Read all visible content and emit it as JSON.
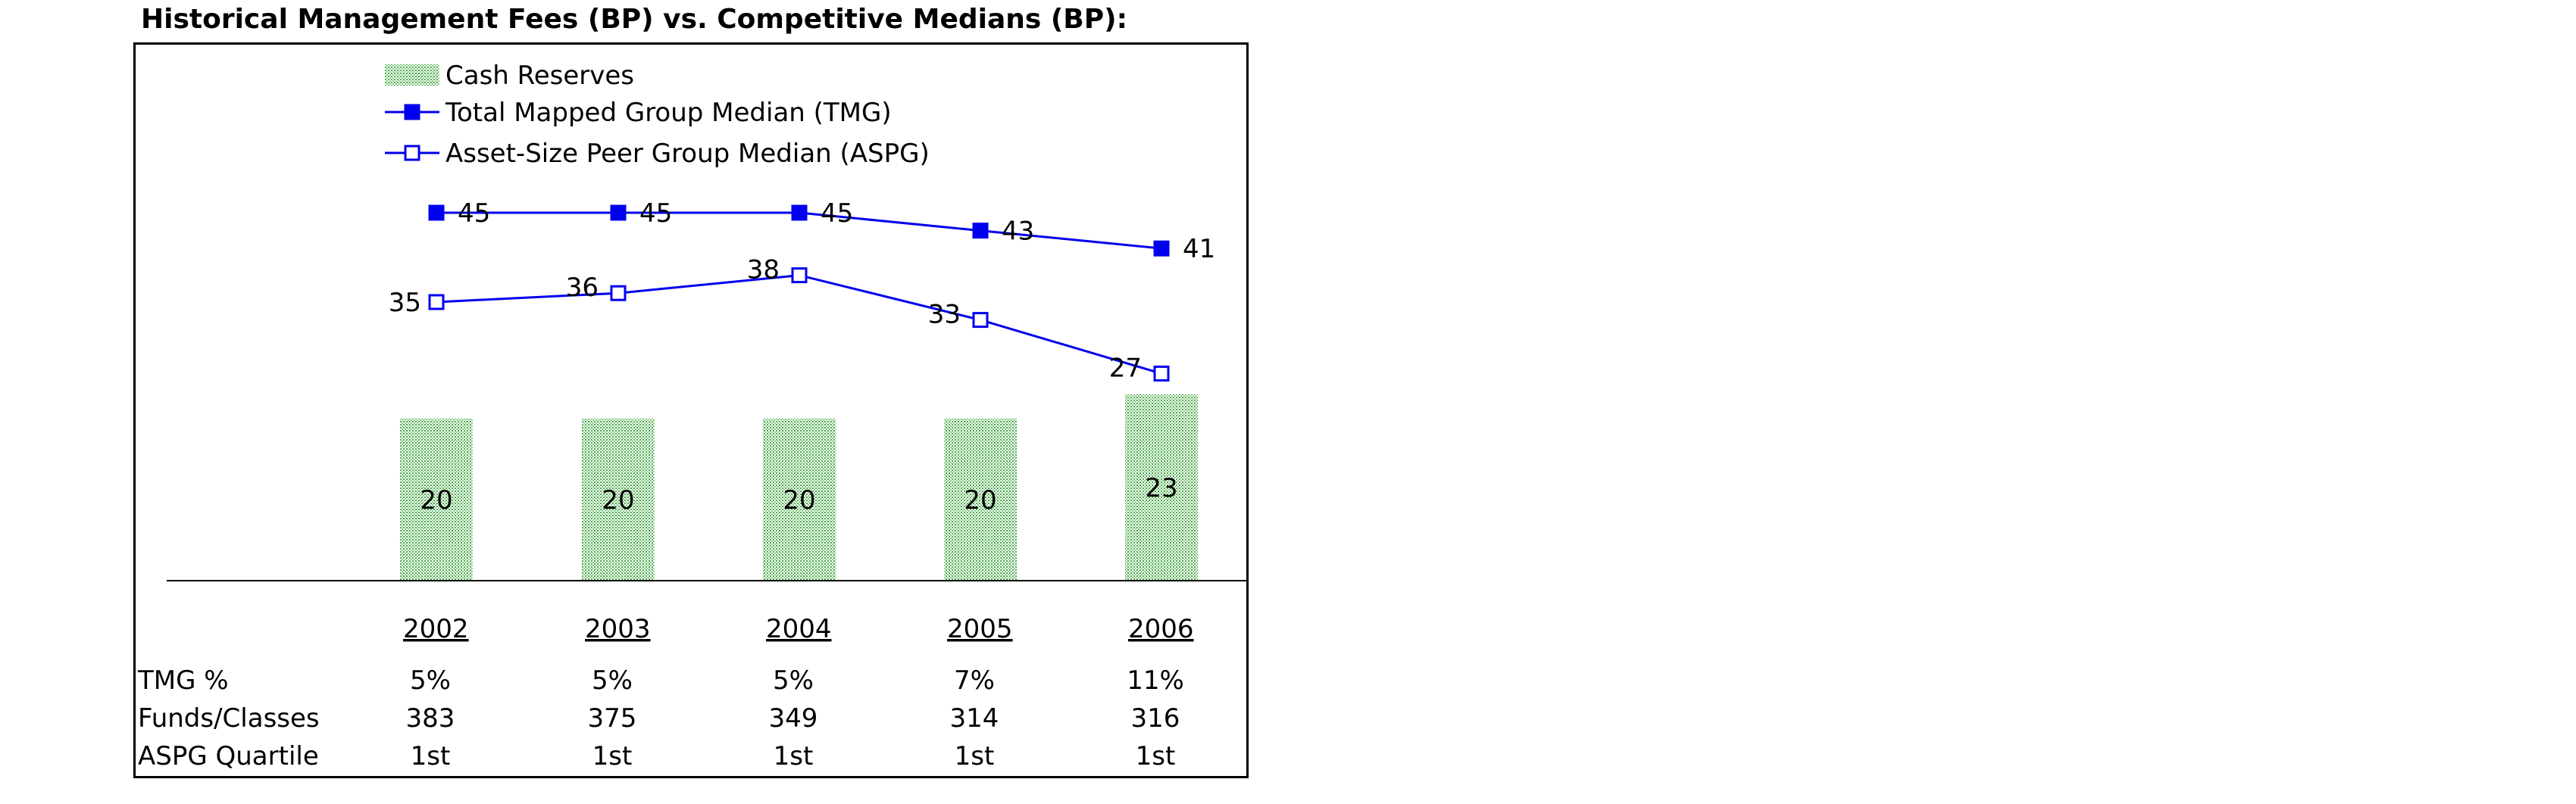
{
  "title": "Historical Management Fees (BP) vs. Competitive Medians (BP):",
  "chart_data": {
    "type": "bar",
    "categories": [
      "2002",
      "2003",
      "2004",
      "2005",
      "2006"
    ],
    "series": [
      {
        "name": "Cash Reserves",
        "kind": "bar",
        "values": [
          20,
          20,
          20,
          20,
          23
        ],
        "color": "#6fb86f"
      },
      {
        "name": "Total Mapped Group Median (TMG)",
        "kind": "line",
        "marker": "filled-square",
        "values": [
          45,
          45,
          45,
          43,
          41
        ],
        "color": "#0000ee"
      },
      {
        "name": "Asset-Size Peer Group Median (ASPG)",
        "kind": "line",
        "marker": "open-square",
        "values": [
          35,
          36,
          38,
          33,
          27
        ],
        "color": "#0000ee"
      }
    ],
    "legend_position": "top-left",
    "grid": false
  },
  "table": {
    "rows": [
      {
        "label": "TMG %",
        "values": [
          "5%",
          "5%",
          "5%",
          "7%",
          "11%"
        ]
      },
      {
        "label": "Funds/Classes",
        "values": [
          "383",
          "375",
          "349",
          "314",
          "316"
        ]
      },
      {
        "label": "ASPG Quartile",
        "values": [
          "1st",
          "1st",
          "1st",
          "1st",
          "1st"
        ]
      }
    ]
  }
}
